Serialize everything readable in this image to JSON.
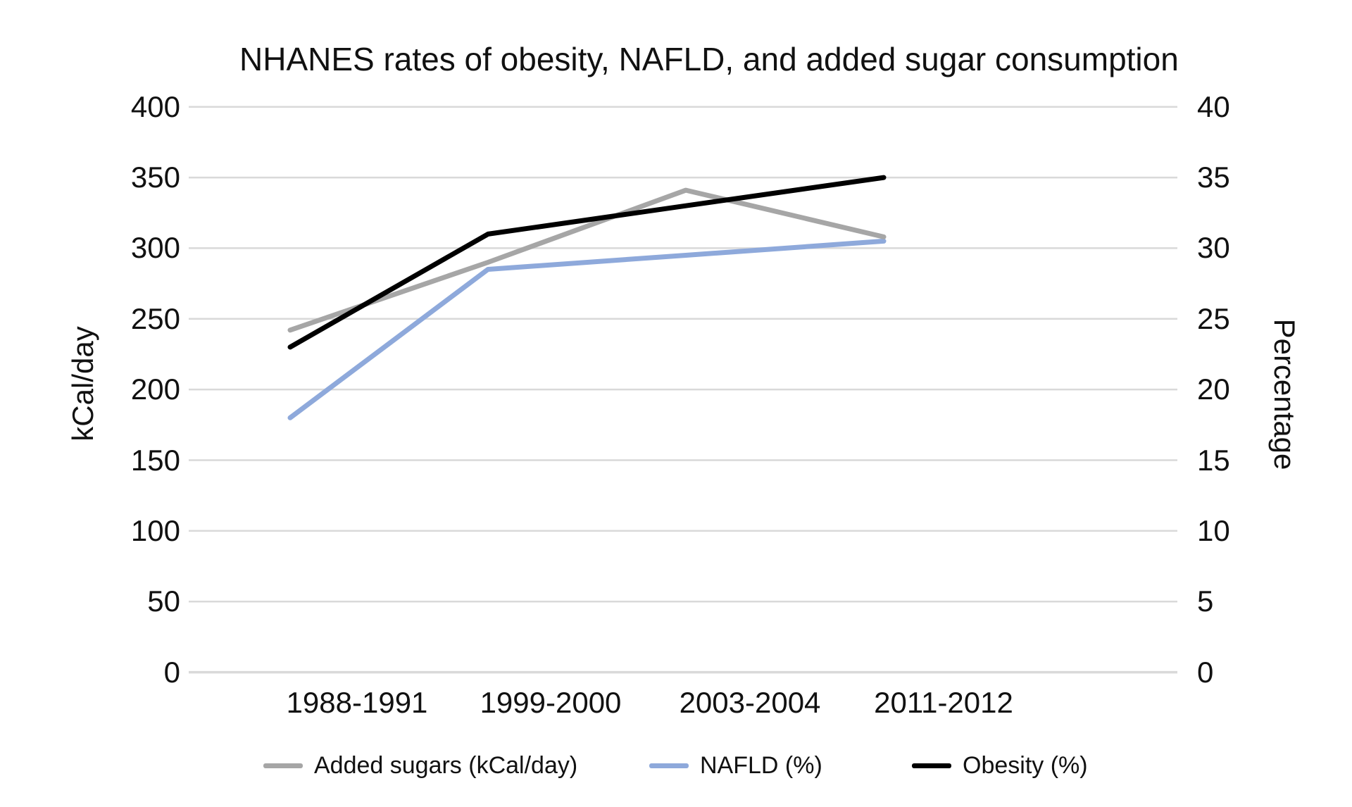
{
  "chart_data": {
    "type": "line",
    "title": "NHANES rates of obesity, NAFLD, and added sugar consumption",
    "categories": [
      "1988-1991",
      "1999-2000",
      "2003-2004",
      "2011-2012"
    ],
    "series": [
      {
        "name": "Added sugars (kCal/day)",
        "axis": "left",
        "color": "#a6a6a6",
        "values": [
          242,
          290,
          341,
          308
        ]
      },
      {
        "name": "NAFLD (%)",
        "axis": "right",
        "color": "#8ea9db",
        "values": [
          18,
          28.5,
          29.5,
          30.5
        ]
      },
      {
        "name": "Obesity (%)",
        "axis": "right",
        "color": "#000000",
        "values": [
          23,
          31,
          33,
          35
        ]
      }
    ],
    "axes": {
      "left": {
        "label": "kCal/day",
        "min": 0,
        "max": 400,
        "ticks": [
          400,
          350,
          300,
          250,
          200,
          150,
          100,
          50,
          0
        ]
      },
      "right": {
        "label": "Percentage",
        "min": 0,
        "max": 40,
        "ticks": [
          40,
          35,
          30,
          25,
          20,
          15,
          10,
          5,
          0
        ]
      }
    },
    "grid": true,
    "gridline_color": "#d9d9d9",
    "legend_position": "bottom"
  }
}
